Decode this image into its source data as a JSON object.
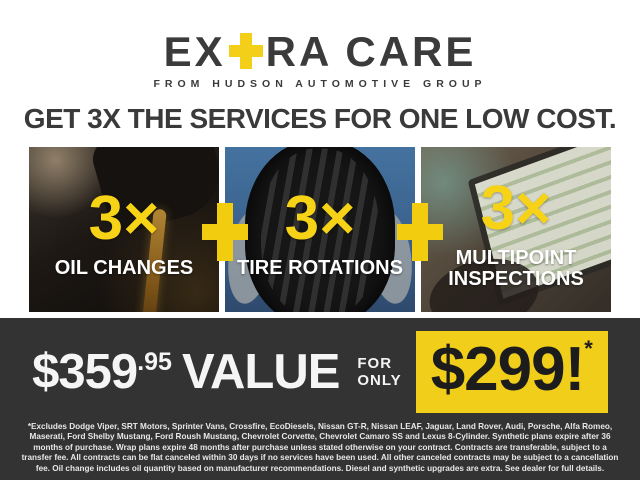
{
  "brand": {
    "logo_part1": "EX",
    "logo_part2": "RA CARE",
    "tagline": "FROM HUDSON AUTOMOTIVE GROUP"
  },
  "headline": "GET 3X THE SERVICES FOR ONE LOW COST.",
  "colors": {
    "accent_yellow": "#F3CF1A",
    "dark_text": "#3A3A3A",
    "footer_background": "#333333",
    "label_white": "#FFFFFF"
  },
  "services": [
    {
      "multiplier": "3×",
      "label": "OIL CHANGES",
      "image": "oil-pour-photo"
    },
    {
      "multiplier": "3×",
      "label": "TIRE ROTATIONS",
      "image": "tire-holding-photo"
    },
    {
      "multiplier": "3×",
      "label": "MULTIPOINT INSPECTIONS",
      "image": "laptop-inspection-photo"
    }
  ],
  "offer": {
    "value_price_dollars": "$359",
    "value_price_cents": ".95",
    "value_label": "VALUE",
    "for_only_line1": "FOR",
    "for_only_line2": "ONLY",
    "sale_price": "$299!",
    "sale_asterisk": "*"
  },
  "disclaimer": "*Excludes Dodge Viper, SRT Motors, Sprinter Vans, Crossfire, EcoDiesels, Nissan GT-R, Nissan LEAF, Jaguar, Land Rover, Audi, Porsche, Alfa Romeo, Maserati, Ford Shelby Mustang, Ford Roush Mustang, Chevrolet Corvette, Chevrolet Camaro SS and Lexus 8-Cylinder. Synthetic plans expire after 36 months of purchase. Wrap plans expire 48 months after purchase unless stated otherwise on your contract. Contracts are transferable, subject to a transfer fee. All contracts can be flat canceled within 30 days if no services have been used. All other canceled contracts may be subject to a cancellation fee. Oil change includes oil quantity based on manufacturer recommendations. Diesel and synthetic upgrades are extra. See dealer for full details."
}
